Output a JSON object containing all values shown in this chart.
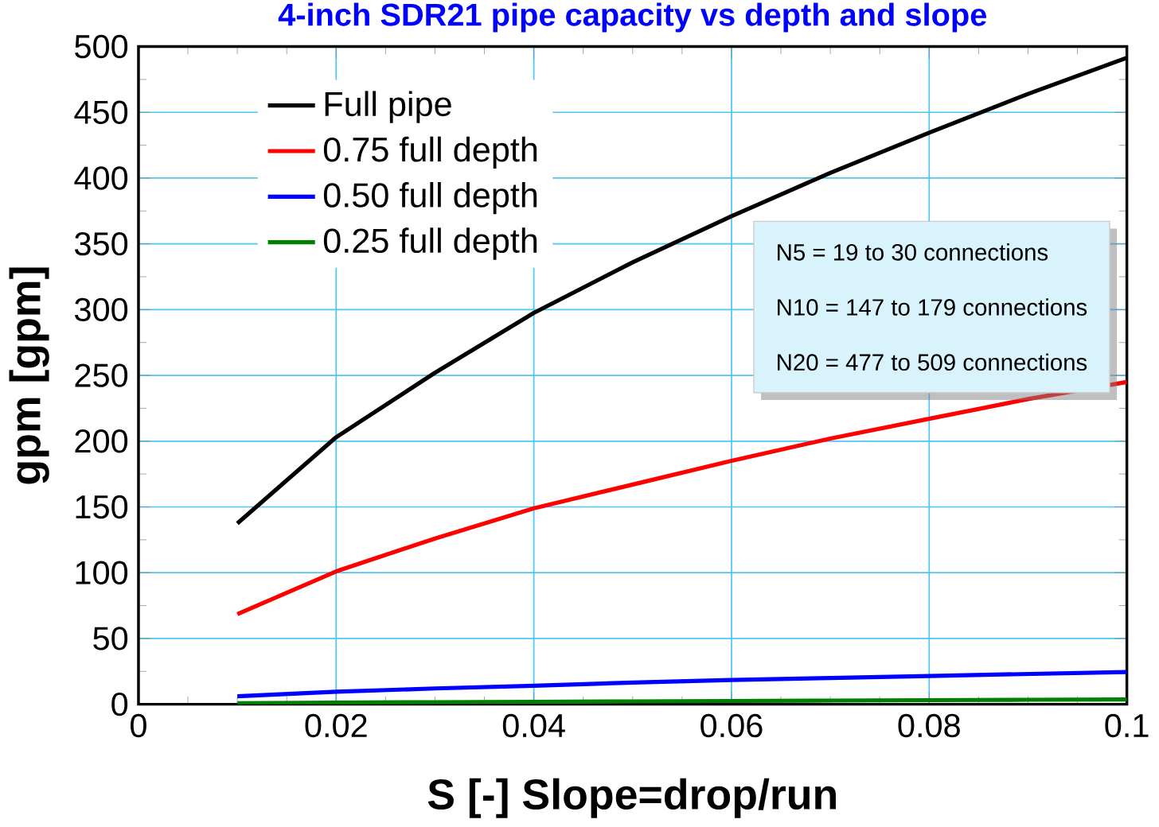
{
  "chart_data": {
    "type": "line",
    "title": "4-inch SDR21 pipe capacity vs depth and slope",
    "xlabel": "S  [-] Slope=drop/run",
    "ylabel": "gpm  [gpm]",
    "x": [
      0.01,
      0.02,
      0.03,
      0.04,
      0.05,
      0.06,
      0.07,
      0.08,
      0.09,
      0.1
    ],
    "series": [
      {
        "name": "Full pipe",
        "color": "#000000",
        "values": [
          137.5,
          203,
          252,
          297.5,
          336,
          371,
          404,
          434.5,
          464,
          491.5
        ]
      },
      {
        "name": "0.75 full depth",
        "color": "#ff0000",
        "values": [
          68.5,
          101,
          126,
          149,
          167,
          185,
          202,
          217,
          232,
          245
        ]
      },
      {
        "name": "0.50 full depth",
        "color": "#0000ff",
        "values": [
          6,
          9.5,
          12,
          14,
          16.5,
          18.5,
          20,
          21.5,
          23,
          24.5
        ]
      },
      {
        "name": "0.25 full depth",
        "color": "#008000",
        "values": [
          0.8,
          1.3,
          1.6,
          1.8,
          2.2,
          2.5,
          2.8,
          3.1,
          3.4,
          3.6
        ]
      }
    ],
    "xlim": [
      0,
      0.1
    ],
    "ylim": [
      0,
      500
    ],
    "xticks": [
      0,
      0.02,
      0.04,
      0.06,
      0.08,
      0.1
    ],
    "yticks": [
      0,
      50,
      100,
      150,
      200,
      250,
      300,
      350,
      400,
      450,
      500
    ],
    "grid": true,
    "legend": "top left",
    "marker": "none",
    "line_style": "solid",
    "annotations": [
      "N5 = 19 to 30 connections",
      "N10 = 147 to 179 connections",
      "N20 = 477 to 509 connections"
    ]
  }
}
